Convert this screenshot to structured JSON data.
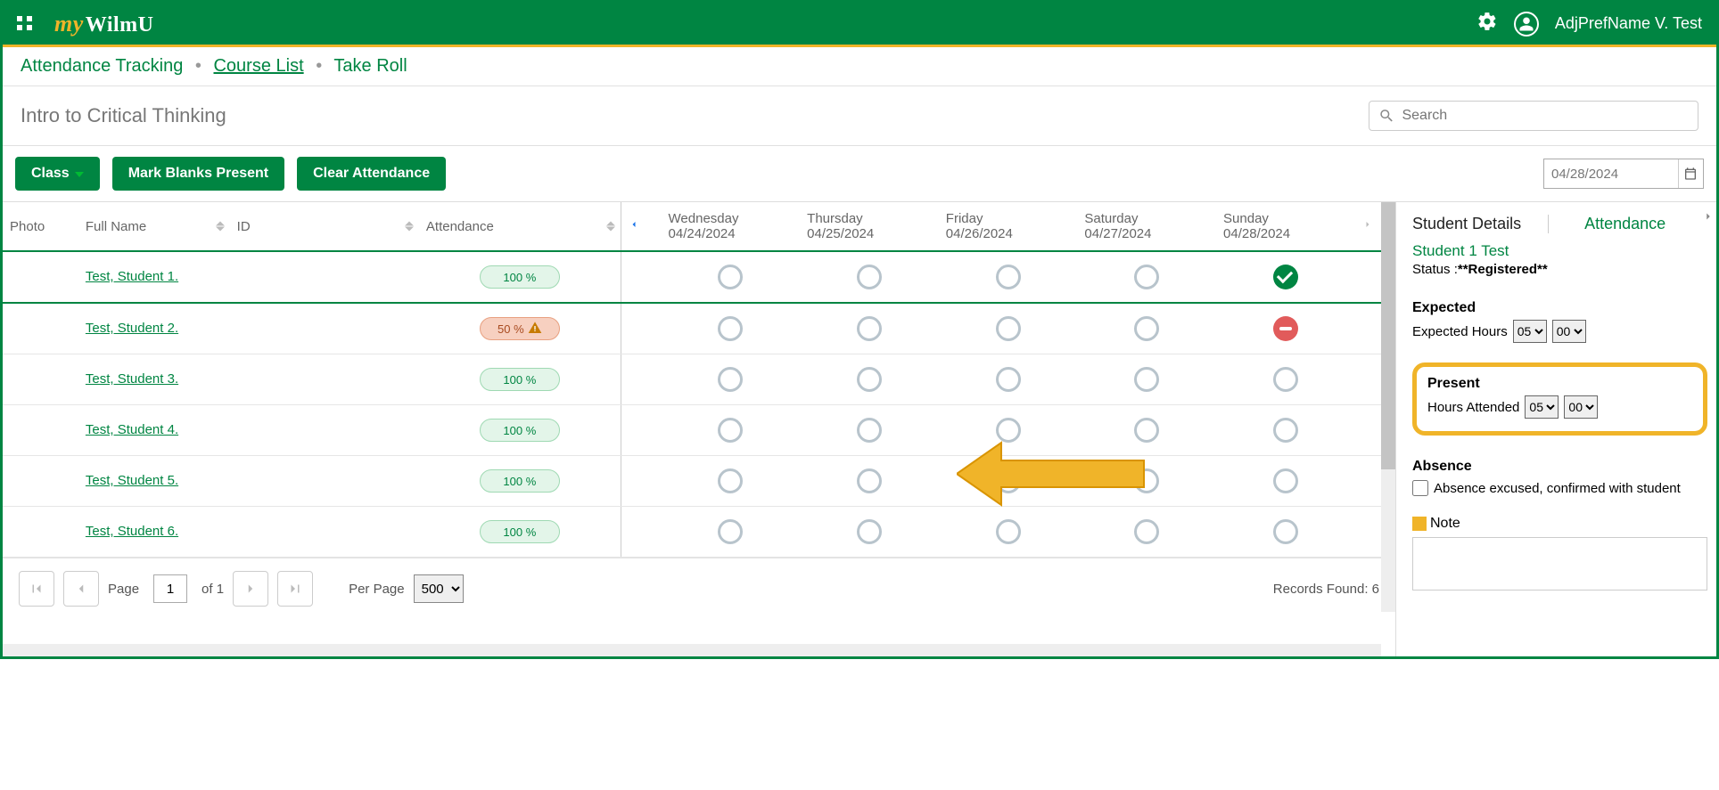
{
  "brand": {
    "prefix": "my",
    "name": "WilmU"
  },
  "user": {
    "display": "AdjPrefName V. Test"
  },
  "breadcrumb": {
    "a": "Attendance Tracking",
    "b": "Course List",
    "c": "Take Roll"
  },
  "page": {
    "title": "Intro to Critical Thinking",
    "search_placeholder": "Search"
  },
  "toolbar": {
    "class_btn": "Class",
    "mark_blanks": "Mark Blanks Present",
    "clear": "Clear Attendance",
    "date_value": "04/28/2024"
  },
  "columns": {
    "photo": "Photo",
    "name": "Full Name",
    "id": "ID",
    "attendance": "Attendance"
  },
  "days": [
    {
      "name": "Wednesday",
      "date": "04/24/2024"
    },
    {
      "name": "Thursday",
      "date": "04/25/2024"
    },
    {
      "name": "Friday",
      "date": "04/26/2024"
    },
    {
      "name": "Saturday",
      "date": "04/27/2024"
    },
    {
      "name": "Sunday",
      "date": "04/28/2024"
    }
  ],
  "rows": [
    {
      "name": "Test, Student 1.",
      "pct": "100 %",
      "pill": "green",
      "sunday": "present",
      "selected": true
    },
    {
      "name": "Test, Student 2.",
      "pct": "50 %",
      "pill": "orange",
      "sunday": "absent",
      "warn": true
    },
    {
      "name": "Test, Student 3.",
      "pct": "100 %",
      "pill": "green",
      "sunday": "empty"
    },
    {
      "name": "Test, Student 4.",
      "pct": "100 %",
      "pill": "green",
      "sunday": "empty"
    },
    {
      "name": "Test, Student 5.",
      "pct": "100 %",
      "pill": "green",
      "sunday": "empty"
    },
    {
      "name": "Test, Student 6.",
      "pct": "100 %",
      "pill": "green",
      "sunday": "empty"
    }
  ],
  "pager": {
    "page_lbl": "Page",
    "of_lbl": "of 1",
    "page_val": "1",
    "perpage_lbl": "Per Page",
    "perpage_val": "500",
    "records": "Records Found: 6"
  },
  "detail": {
    "tab_details": "Student Details",
    "tab_attendance": "Attendance",
    "student_name": "Student 1 Test",
    "status_lbl": "Status :",
    "status_val": "**Registered**",
    "expected_title": "Expected",
    "expected_lbl": "Expected Hours",
    "expected_h": "05",
    "expected_m": "00",
    "present_title": "Present",
    "attended_lbl": "Hours Attended",
    "attended_h": "05",
    "attended_m": "00",
    "absence_title": "Absence",
    "absence_chk_lbl": "Absence excused, confirmed with student",
    "note_lbl": "Note"
  },
  "colors": {
    "brand_green": "#008542",
    "accent_yellow": "#f0b429"
  }
}
